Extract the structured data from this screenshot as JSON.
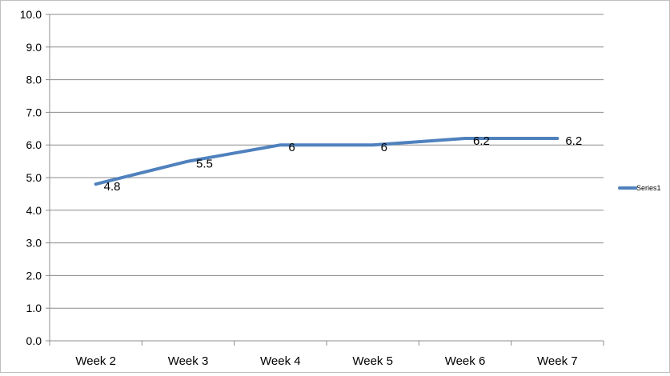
{
  "chart_data": {
    "type": "line",
    "categories": [
      "Week 2",
      "Week 3",
      "Week 4",
      "Week 5",
      "Week 6",
      "Week 7"
    ],
    "series": [
      {
        "name": "Series1",
        "values": [
          4.8,
          5.5,
          6,
          6,
          6.2,
          6.2
        ],
        "labels": [
          "4.8",
          "5.5",
          "6",
          "6",
          "6.2",
          "6.2"
        ],
        "color": "#4f81bd"
      }
    ],
    "yticks": [
      "0.0",
      "1.0",
      "2.0",
      "3.0",
      "4.0",
      "5.0",
      "6.0",
      "7.0",
      "8.0",
      "9.0",
      "10.0"
    ],
    "ylim": [
      0,
      10
    ],
    "title": "",
    "xlabel": "",
    "ylabel": "",
    "grid": true,
    "legend": "right"
  }
}
